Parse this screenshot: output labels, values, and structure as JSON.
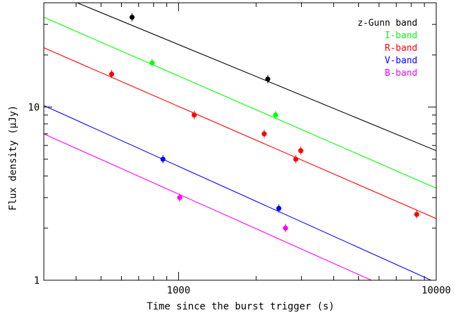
{
  "chart_data": {
    "type": "scatter",
    "title": "",
    "xlabel": "Time since the burst trigger (s)",
    "ylabel": "Flux density (μJy)",
    "xscale": "log",
    "yscale": "log",
    "xlim": [
      300,
      10000
    ],
    "ylim": [
      1,
      40
    ],
    "x_tick_labels": [
      "1000",
      "10000"
    ],
    "y_tick_labels": [
      "1",
      "10"
    ],
    "legend_position": "top-right",
    "fit_lines": "power-law decay",
    "series": [
      {
        "name": "z-Gunn band",
        "color": "#000000",
        "points": [
          {
            "x": 660,
            "y": 33.0
          },
          {
            "x": 2220,
            "y": 14.5
          }
        ],
        "fit": {
          "x": [
            300,
            10000
          ],
          "y": [
            48.0,
            5.6
          ]
        }
      },
      {
        "name": "I-band",
        "color": "#00ff00",
        "points": [
          {
            "x": 790,
            "y": 18.0
          },
          {
            "x": 2380,
            "y": 9.0
          }
        ],
        "fit": {
          "x": [
            300,
            10000
          ],
          "y": [
            33.0,
            3.4
          ]
        }
      },
      {
        "name": "R-band",
        "color": "#ff0000",
        "points": [
          {
            "x": 550,
            "y": 15.5
          },
          {
            "x": 1150,
            "y": 9.0
          },
          {
            "x": 2150,
            "y": 7.0
          },
          {
            "x": 2850,
            "y": 5.0
          },
          {
            "x": 2980,
            "y": 5.6
          },
          {
            "x": 8400,
            "y": 2.4
          }
        ],
        "fit": {
          "x": [
            300,
            10000
          ],
          "y": [
            22.0,
            2.27
          ]
        }
      },
      {
        "name": "V-band",
        "color": "#0000ff",
        "points": [
          {
            "x": 870,
            "y": 5.0
          },
          {
            "x": 2450,
            "y": 2.6
          }
        ],
        "fit": {
          "x": [
            300,
            10000
          ],
          "y": [
            10.2,
            0.97
          ]
        }
      },
      {
        "name": "B-band",
        "color": "#ff00ff",
        "points": [
          {
            "x": 1010,
            "y": 3.0
          },
          {
            "x": 2600,
            "y": 2.0
          }
        ],
        "fit": {
          "x": [
            300,
            10000
          ],
          "y": [
            7.0,
            0.68
          ]
        }
      }
    ]
  }
}
